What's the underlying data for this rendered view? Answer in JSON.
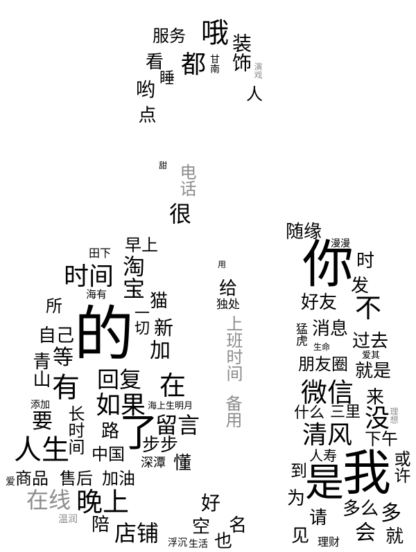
{
  "words": {
    "fuwu": "服务",
    "o": "哦",
    "zhuangshi": "装饰",
    "kan": "看",
    "dou": "都",
    "gannan": "甘南",
    "yanxi": "演戏",
    "shui": "睡",
    "yo": "哟",
    "ren_top": "人",
    "dian": "点",
    "tian": "甜",
    "dianhua": "电话",
    "hen": "很",
    "tianxia": "田下",
    "zaoshang": "早上",
    "shijian": "时间",
    "taobao": "淘宝",
    "haiyou": "海有",
    "mao": "猫",
    "suo": "所",
    "yiqie": "一切",
    "xin": "新",
    "ziji": "自己",
    "de": "的",
    "jia": "加",
    "deng": "等",
    "qingshan": "青山",
    "you": "有",
    "huifu": "回复",
    "zai": "在",
    "tianjia": "添加",
    "ruguo": "如果",
    "haishangshengmingyue": "海上生明月",
    "yao": "要",
    "changshijian": "长时间",
    "lu": "路",
    "le": "了",
    "liuyan": "留言",
    "rensheng": "人生",
    "zhongguo": "中国",
    "bubu": "步步",
    "shentan": "深潭",
    "dong": "懂",
    "ai_left": "爱",
    "shangpin": "商品",
    "shouhou": "售后",
    "jiayou": "加油",
    "zaixian": "在线",
    "wanshang": "晚上",
    "hao": "好",
    "wenrun": "温润",
    "pei": "陪",
    "dianpu": "店铺",
    "kong": "空",
    "fuchen": "浮沉",
    "shenghuo": "生活",
    "ye": "也",
    "ming": "名",
    "yong": "用",
    "gei": "给",
    "duchu": "独处",
    "shangbanshijian": "上班时间",
    "beiyong": "备用",
    "suiyuan": "随缘",
    "manman": "漫漫",
    "ni": "你",
    "shi_time": "时",
    "fa": "发",
    "haoyou": "好友",
    "bu": "不",
    "menghu": "猛虎",
    "xiaoxi": "消息",
    "shengming": "生命",
    "guoqu": "过去",
    "aiqi": "爱其",
    "pengyouquan": "朋友圈",
    "jiushi": "就是",
    "weixin": "微信",
    "lai": "来",
    "shenme": "什么",
    "sanli": "三里",
    "mei": "没",
    "lixiang": "理想",
    "qingfeng": "清风",
    "xiawu": "下午",
    "renshou": "人寿",
    "dao": "到",
    "wo": "我",
    "huoxu": "或许",
    "shi_is": "是",
    "wei": "为",
    "duome": "多么",
    "duo": "多",
    "qing": "请",
    "jian": "见",
    "licai": "理财",
    "hui": "会",
    "jiu": "就"
  }
}
